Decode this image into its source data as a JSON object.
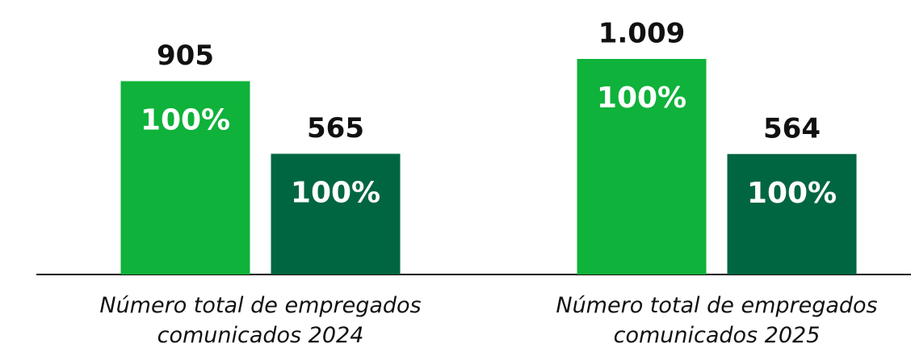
{
  "chart_data": {
    "type": "bar",
    "categories": [
      "Número total de empregados comunicados 2024",
      "Número total de empregados comunicados 2025"
    ],
    "series": [
      {
        "color": "#0fb23a",
        "values": [
          905,
          1009
        ],
        "value_labels": [
          "905",
          "1.009"
        ],
        "percentages": [
          100,
          100
        ],
        "percentage_labels": [
          "100%",
          "100%"
        ]
      },
      {
        "color": "#006641",
        "values": [
          565,
          564
        ],
        "value_labels": [
          "565",
          "564"
        ],
        "percentages": [
          100,
          100
        ],
        "percentage_labels": [
          "100%",
          "100%"
        ]
      }
    ]
  }
}
